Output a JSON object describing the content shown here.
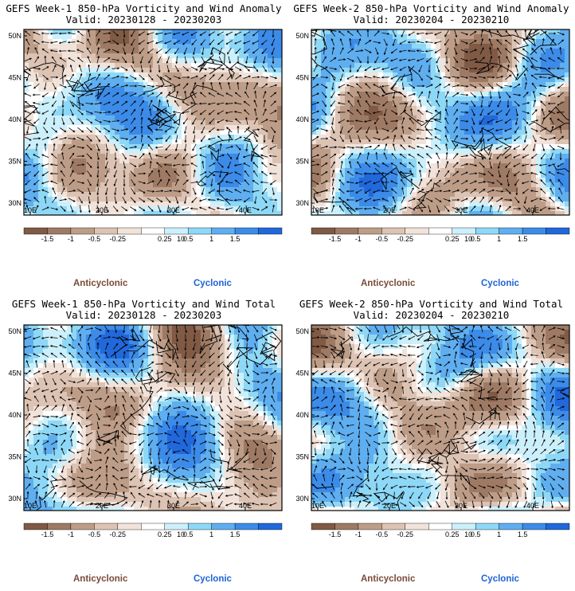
{
  "panels": [
    {
      "title": "GEFS Week-1 850-hPa Vorticity and Wind Anomaly",
      "valid": "Valid: 20230128 - 20230203",
      "seed": 11
    },
    {
      "title": "GEFS Week-2 850-hPa Vorticity and Wind Anomaly",
      "valid": "Valid: 20230204 - 20230210",
      "seed": 23
    },
    {
      "title": "GEFS Week-1 850-hPa Vorticity and Wind Total",
      "valid": "Valid: 20230128 - 20230203",
      "seed": 37
    },
    {
      "title": "GEFS Week-2 850-hPa Vorticity and Wind Total",
      "valid": "Valid: 20230204 - 20230210",
      "seed": 53
    }
  ],
  "axes": {
    "lat_labels": [
      "50N",
      "45N",
      "40N",
      "35N",
      "30N"
    ],
    "lon_labels": [
      "10E",
      "20E",
      "30E",
      "40E"
    ]
  },
  "colorbar": {
    "labels": [
      "-1.5",
      "-1",
      "-0.5",
      "-0.25",
      "0.25",
      "0.5",
      "1",
      "1.5"
    ],
    "scale_label": "10",
    "colors": [
      "#805a45",
      "#9e7a64",
      "#bd9d88",
      "#dcc3b3",
      "#f2e3da",
      "#ffffff",
      "#ccf0fb",
      "#8ed8f7",
      "#5faef0",
      "#3c8be8",
      "#2168db"
    ]
  },
  "legend": {
    "anticyclonic": "Anticyclonic",
    "cyclonic": "Cyclonic"
  }
}
